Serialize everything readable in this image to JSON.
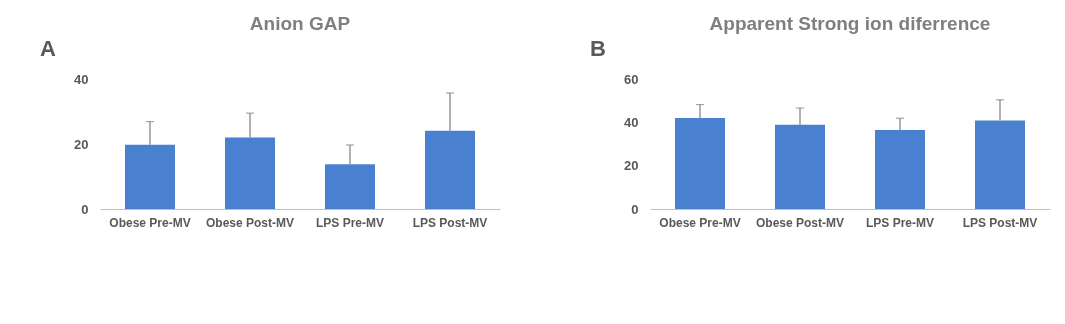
{
  "chart_data": [
    {
      "type": "bar",
      "title": "Anion GAP",
      "annotations": [
        "A"
      ],
      "categories": [
        "Obese Pre-MV",
        "Obese Post-MV",
        "LPS Pre-MV",
        "LPS Post-MV"
      ],
      "color": "#4a80d0",
      "values": [
        19.8,
        22.0,
        13.8,
        24.1
      ],
      "errors": [
        [
          19.8,
          26.9
        ],
        [
          22.0,
          29.5
        ],
        [
          13.8,
          19.7
        ],
        [
          24.1,
          35.7
        ]
      ],
      "ylim": [
        0,
        40
      ],
      "yticks": [
        0,
        20,
        40
      ],
      "grid": false
    },
    {
      "type": "bar",
      "title": "Apparent Strong ion diferrence",
      "annotations": [
        "B"
      ],
      "categories": [
        "Obese Pre-MV",
        "Obese Post-MV",
        "LPS Pre-MV",
        "LPS Post-MV"
      ],
      "color": "#4a80d0",
      "values": [
        42.0,
        38.9,
        36.5,
        40.8
      ],
      "errors": [
        [
          42.0,
          48.2
        ],
        [
          38.9,
          46.6
        ],
        [
          36.5,
          41.9
        ],
        [
          40.8,
          50.4
        ]
      ],
      "ylim": [
        0,
        60
      ],
      "yticks": [
        0,
        20,
        40,
        60
      ],
      "grid": false
    }
  ]
}
